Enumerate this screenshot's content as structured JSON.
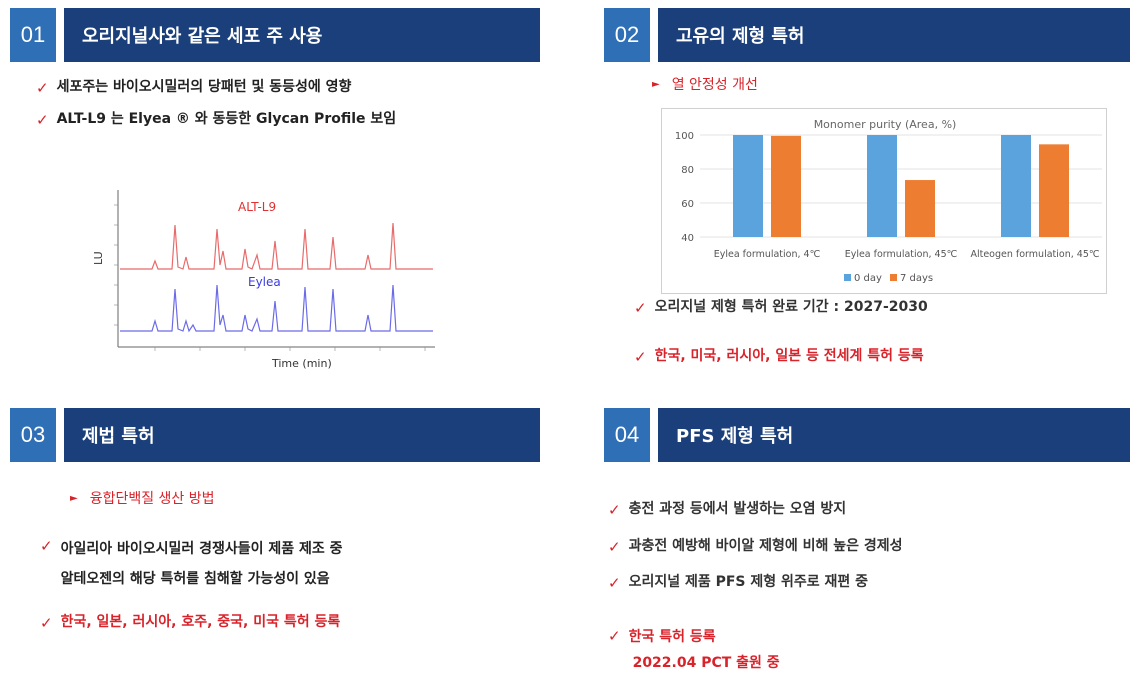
{
  "colors": {
    "num_bg": "#2f6fb5",
    "title_bg": "#1b3f7a",
    "accent_red": "#d8232a",
    "bar_blue": "#5aa3dd",
    "bar_orange": "#ed7d31",
    "alt_trace": "#e86b6b",
    "eylea_trace": "#6b6be8"
  },
  "s1": {
    "num": "01",
    "title": "오리지널사와 같은 세포 주 사용",
    "bullets": [
      "세포주는 바이오시밀러의 당패턴 및 동등성에 영향",
      "ALT-L9 는 Elyea ® 와 동등한 Glycan Profile 보임"
    ],
    "chromatogram": {
      "label_top": "ALT-L9",
      "label_bottom": "Eylea",
      "ylabel": "LU",
      "xlabel": "Time (min)"
    }
  },
  "s2": {
    "num": "02",
    "title": "고유의 제형 특허",
    "sub": "열 안정성 개선",
    "bullets": [
      "오리지널 제형 특허 완료 기간 : 2027-2030",
      "한국, 미국, 러시아, 일본 등 전세계 특허 등록"
    ]
  },
  "s3": {
    "num": "03",
    "title": "제법 특허",
    "sub": "융합단백질 생산 방법",
    "bullets": [
      "아일리아 바이오시밀러 경쟁사들이 제품 제조 중",
      "알테오젠의 해당 특허를 침해할 가능성이 있음",
      "한국, 일본, 러시아, 호주, 중국, 미국 특허 등록"
    ]
  },
  "s4": {
    "num": "04",
    "title": "PFS 제형 특허",
    "bullets": [
      "충전 과정 등에서 발생하는 오염 방지",
      "과충전 예방해 바이알 제형에 비해 높은 경제성",
      "오리지널 제품 PFS 제형 위주로 재편 중",
      "한국 특허 등록",
      "2022.04 PCT 출원 중"
    ]
  },
  "chart_data": {
    "type": "bar",
    "title": "Monomer purity (Area, %)",
    "categories": [
      "Eylea formulation, 4℃",
      "Eylea formulation, 45℃",
      "Alteogen formulation, 45℃"
    ],
    "series": [
      {
        "name": "0 day",
        "values": [
          100,
          100,
          100
        ]
      },
      {
        "name": "7 days",
        "values": [
          99.5,
          73.5,
          94.5
        ]
      }
    ],
    "yticks": [
      "100",
      "80",
      "60",
      "40"
    ],
    "ylim": [
      40,
      100
    ],
    "grid": true,
    "legend": "bottom"
  }
}
